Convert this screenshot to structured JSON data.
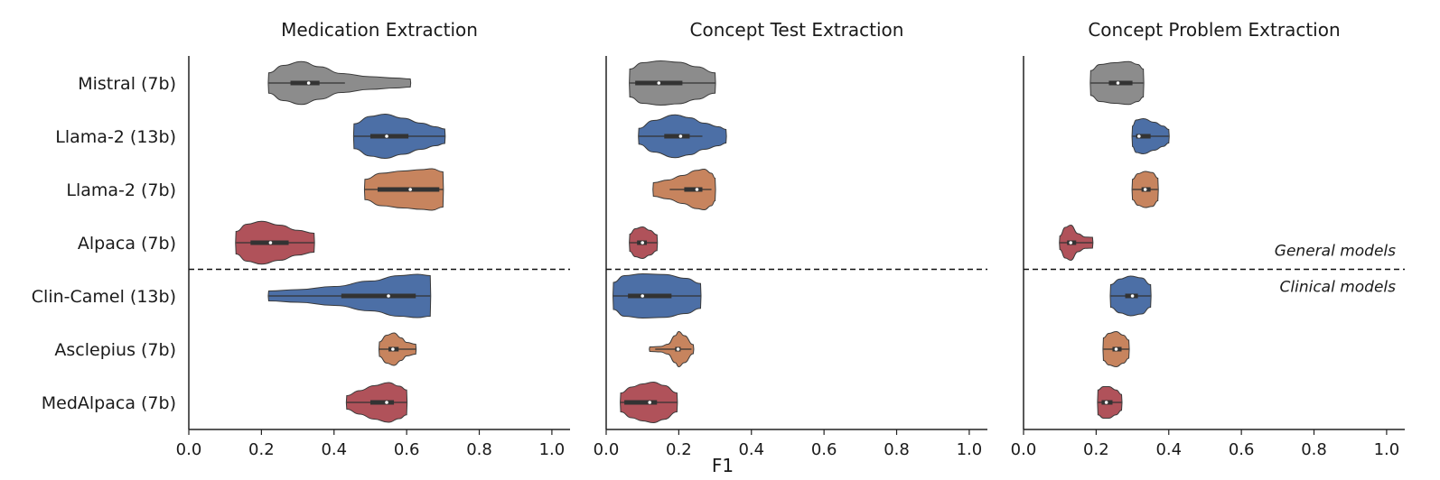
{
  "chart_data": {
    "type": "violin",
    "xlabel": "F1",
    "xlim": [
      0.0,
      1.05
    ],
    "xticks": [
      "0.0",
      "0.2",
      "0.4",
      "0.6",
      "0.8",
      "1.0"
    ],
    "categories": [
      "Mistral (7b)",
      "Llama-2 (13b)",
      "Llama-2 (7b)",
      "Alpaca (7b)",
      "Clin-Camel (13b)",
      "Asclepius (7b)",
      "MedAlpaca (7b)"
    ],
    "colors": [
      "#8c8c8c",
      "#4c6fa6",
      "#c7845e",
      "#b0525a",
      "#4c6fa6",
      "#c7845e",
      "#b0525a"
    ],
    "divider": {
      "after_index": 3,
      "label_above": "General models",
      "label_below": "Clinical models"
    },
    "panels": [
      {
        "title": "Medication Extraction",
        "violins": [
          {
            "min": 0.22,
            "max": 0.61,
            "q1": 0.28,
            "median": 0.33,
            "q3": 0.36,
            "w_lo": 0.22,
            "w_hi": 0.43,
            "density": [
              [
                0.22,
                0.45
              ],
              [
                0.26,
                0.78
              ],
              [
                0.31,
                0.95
              ],
              [
                0.36,
                0.72
              ],
              [
                0.42,
                0.42
              ],
              [
                0.5,
                0.28
              ],
              [
                0.57,
                0.22
              ],
              [
                0.61,
                0.18
              ]
            ]
          },
          {
            "min": 0.455,
            "max": 0.705,
            "q1": 0.5,
            "median": 0.545,
            "q3": 0.605,
            "w_lo": 0.455,
            "w_hi": 0.705,
            "density": [
              [
                0.455,
                0.55
              ],
              [
                0.5,
                0.88
              ],
              [
                0.54,
                0.98
              ],
              [
                0.59,
                0.8
              ],
              [
                0.64,
                0.58
              ],
              [
                0.68,
                0.42
              ],
              [
                0.705,
                0.32
              ]
            ]
          },
          {
            "min": 0.485,
            "max": 0.7,
            "q1": 0.52,
            "median": 0.61,
            "q3": 0.69,
            "w_lo": 0.485,
            "w_hi": 0.7,
            "density": [
              [
                0.485,
                0.45
              ],
              [
                0.53,
                0.72
              ],
              [
                0.59,
                0.82
              ],
              [
                0.64,
                0.88
              ],
              [
                0.67,
                0.92
              ],
              [
                0.7,
                0.78
              ]
            ]
          },
          {
            "min": 0.13,
            "max": 0.345,
            "q1": 0.17,
            "median": 0.225,
            "q3": 0.275,
            "w_lo": 0.13,
            "w_hi": 0.345,
            "density": [
              [
                0.13,
                0.5
              ],
              [
                0.16,
                0.82
              ],
              [
                0.2,
                0.95
              ],
              [
                0.25,
                0.78
              ],
              [
                0.3,
                0.55
              ],
              [
                0.345,
                0.42
              ]
            ]
          },
          {
            "min": 0.22,
            "max": 0.665,
            "q1": 0.42,
            "median": 0.55,
            "q3": 0.625,
            "w_lo": 0.22,
            "w_hi": 0.665,
            "density": [
              [
                0.22,
                0.22
              ],
              [
                0.3,
                0.28
              ],
              [
                0.4,
                0.42
              ],
              [
                0.5,
                0.66
              ],
              [
                0.58,
                0.9
              ],
              [
                0.63,
                0.96
              ],
              [
                0.665,
                0.9
              ]
            ]
          },
          {
            "min": 0.525,
            "max": 0.625,
            "q1": 0.55,
            "median": 0.562,
            "q3": 0.578,
            "w_lo": 0.525,
            "w_hi": 0.625,
            "density": [
              [
                0.525,
                0.32
              ],
              [
                0.545,
                0.62
              ],
              [
                0.565,
                0.72
              ],
              [
                0.585,
                0.5
              ],
              [
                0.6,
                0.3
              ],
              [
                0.625,
                0.22
              ]
            ]
          },
          {
            "min": 0.435,
            "max": 0.6,
            "q1": 0.5,
            "median": 0.545,
            "q3": 0.565,
            "w_lo": 0.435,
            "w_hi": 0.6,
            "density": [
              [
                0.435,
                0.3
              ],
              [
                0.47,
                0.52
              ],
              [
                0.51,
                0.74
              ],
              [
                0.55,
                0.88
              ],
              [
                0.58,
                0.72
              ],
              [
                0.6,
                0.55
              ]
            ]
          }
        ]
      },
      {
        "title": "Concept Test Extraction",
        "violins": [
          {
            "min": 0.065,
            "max": 0.3,
            "q1": 0.08,
            "median": 0.145,
            "q3": 0.21,
            "w_lo": 0.065,
            "w_hi": 0.3,
            "density": [
              [
                0.065,
                0.62
              ],
              [
                0.1,
                0.9
              ],
              [
                0.15,
                0.98
              ],
              [
                0.2,
                0.92
              ],
              [
                0.25,
                0.72
              ],
              [
                0.3,
                0.45
              ]
            ]
          },
          {
            "min": 0.09,
            "max": 0.33,
            "q1": 0.16,
            "median": 0.205,
            "q3": 0.23,
            "w_lo": 0.09,
            "w_hi": 0.265,
            "density": [
              [
                0.09,
                0.35
              ],
              [
                0.13,
                0.7
              ],
              [
                0.19,
                0.95
              ],
              [
                0.23,
                0.82
              ],
              [
                0.27,
                0.58
              ],
              [
                0.31,
                0.42
              ],
              [
                0.33,
                0.3
              ]
            ]
          },
          {
            "min": 0.13,
            "max": 0.3,
            "q1": 0.215,
            "median": 0.25,
            "q3": 0.265,
            "w_lo": 0.175,
            "w_hi": 0.29,
            "density": [
              [
                0.13,
                0.3
              ],
              [
                0.17,
                0.42
              ],
              [
                0.21,
                0.62
              ],
              [
                0.25,
                0.85
              ],
              [
                0.27,
                0.9
              ],
              [
                0.29,
                0.72
              ],
              [
                0.3,
                0.5
              ]
            ]
          },
          {
            "min": 0.065,
            "max": 0.14,
            "q1": 0.085,
            "median": 0.1,
            "q3": 0.112,
            "w_lo": 0.065,
            "w_hi": 0.14,
            "density": [
              [
                0.065,
                0.38
              ],
              [
                0.08,
                0.62
              ],
              [
                0.1,
                0.7
              ],
              [
                0.12,
                0.55
              ],
              [
                0.14,
                0.35
              ]
            ]
          },
          {
            "min": 0.02,
            "max": 0.26,
            "q1": 0.06,
            "median": 0.1,
            "q3": 0.18,
            "w_lo": 0.02,
            "w_hi": 0.26,
            "density": [
              [
                0.02,
                0.6
              ],
              [
                0.05,
                0.9
              ],
              [
                0.1,
                0.98
              ],
              [
                0.16,
                0.95
              ],
              [
                0.22,
                0.78
              ],
              [
                0.26,
                0.55
              ]
            ]
          },
          {
            "min": 0.12,
            "max": 0.24,
            "q1": 0.19,
            "median": 0.198,
            "q3": 0.205,
            "w_lo": 0.135,
            "w_hi": 0.235,
            "density": [
              [
                0.12,
                0.1
              ],
              [
                0.15,
                0.12
              ],
              [
                0.17,
                0.22
              ],
              [
                0.19,
                0.6
              ],
              [
                0.2,
                0.78
              ],
              [
                0.215,
                0.6
              ],
              [
                0.24,
                0.2
              ]
            ]
          },
          {
            "min": 0.04,
            "max": 0.195,
            "q1": 0.05,
            "median": 0.12,
            "q3": 0.14,
            "w_lo": 0.04,
            "w_hi": 0.195,
            "density": [
              [
                0.04,
                0.42
              ],
              [
                0.07,
                0.68
              ],
              [
                0.1,
                0.82
              ],
              [
                0.13,
                0.9
              ],
              [
                0.16,
                0.75
              ],
              [
                0.195,
                0.42
              ]
            ]
          }
        ]
      },
      {
        "title": "Concept Problem Extraction",
        "violins": [
          {
            "min": 0.185,
            "max": 0.33,
            "q1": 0.235,
            "median": 0.26,
            "q3": 0.3,
            "w_lo": 0.185,
            "w_hi": 0.33,
            "density": [
              [
                0.185,
                0.55
              ],
              [
                0.21,
                0.82
              ],
              [
                0.25,
                0.9
              ],
              [
                0.29,
                0.95
              ],
              [
                0.315,
                0.82
              ],
              [
                0.33,
                0.62
              ]
            ]
          },
          {
            "min": 0.3,
            "max": 0.4,
            "q1": 0.31,
            "median": 0.318,
            "q3": 0.35,
            "w_lo": 0.3,
            "w_hi": 0.4,
            "density": [
              [
                0.3,
                0.45
              ],
              [
                0.31,
                0.72
              ],
              [
                0.33,
                0.78
              ],
              [
                0.36,
                0.62
              ],
              [
                0.385,
                0.45
              ],
              [
                0.4,
                0.3
              ]
            ]
          },
          {
            "min": 0.3,
            "max": 0.37,
            "q1": 0.325,
            "median": 0.335,
            "q3": 0.35,
            "w_lo": 0.3,
            "w_hi": 0.37,
            "density": [
              [
                0.3,
                0.45
              ],
              [
                0.315,
                0.7
              ],
              [
                0.335,
                0.8
              ],
              [
                0.355,
                0.75
              ],
              [
                0.37,
                0.5
              ]
            ]
          },
          {
            "min": 0.1,
            "max": 0.19,
            "q1": 0.12,
            "median": 0.13,
            "q3": 0.145,
            "w_lo": 0.1,
            "w_hi": 0.19,
            "density": [
              [
                0.1,
                0.3
              ],
              [
                0.115,
                0.68
              ],
              [
                0.13,
                0.78
              ],
              [
                0.15,
                0.4
              ],
              [
                0.17,
                0.25
              ],
              [
                0.19,
                0.24
              ]
            ]
          },
          {
            "min": 0.24,
            "max": 0.35,
            "q1": 0.28,
            "median": 0.3,
            "q3": 0.315,
            "w_lo": 0.24,
            "w_hi": 0.35,
            "density": [
              [
                0.24,
                0.5
              ],
              [
                0.265,
                0.75
              ],
              [
                0.295,
                0.88
              ],
              [
                0.325,
                0.8
              ],
              [
                0.35,
                0.5
              ]
            ]
          },
          {
            "min": 0.22,
            "max": 0.29,
            "q1": 0.245,
            "median": 0.255,
            "q3": 0.27,
            "w_lo": 0.22,
            "w_hi": 0.29,
            "density": [
              [
                0.22,
                0.5
              ],
              [
                0.235,
                0.7
              ],
              [
                0.255,
                0.78
              ],
              [
                0.275,
                0.62
              ],
              [
                0.29,
                0.4
              ]
            ]
          },
          {
            "min": 0.205,
            "max": 0.27,
            "q1": 0.215,
            "median": 0.228,
            "q3": 0.245,
            "w_lo": 0.205,
            "w_hi": 0.27,
            "density": [
              [
                0.205,
                0.55
              ],
              [
                0.22,
                0.7
              ],
              [
                0.235,
                0.7
              ],
              [
                0.255,
                0.55
              ],
              [
                0.27,
                0.35
              ]
            ]
          }
        ]
      }
    ]
  }
}
